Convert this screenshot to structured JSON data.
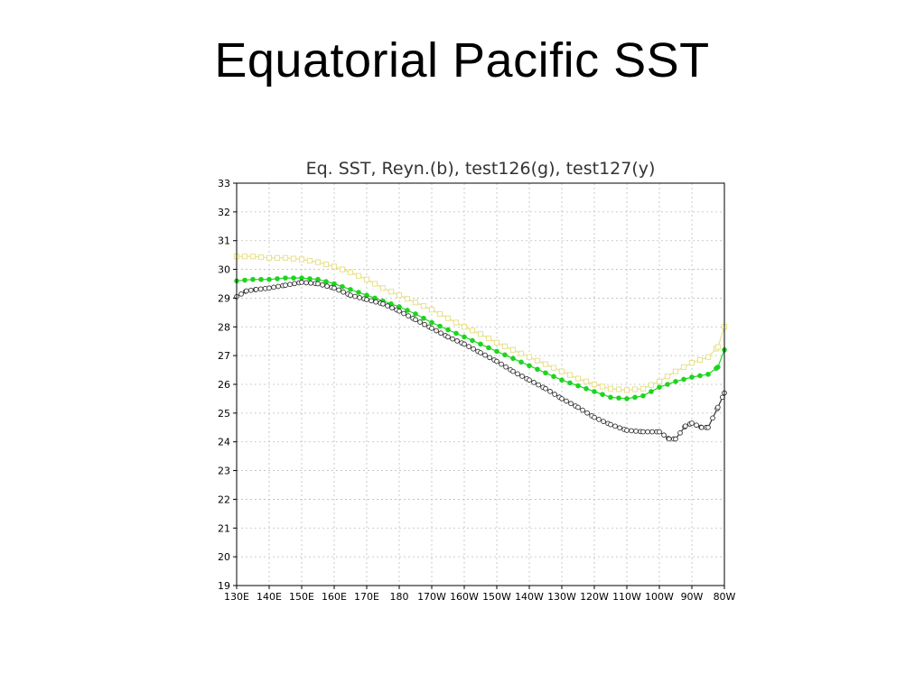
{
  "slide_title": "Equatorial Pacific SST",
  "chart_data": {
    "type": "line",
    "title": "Eq. SST, Reyn.(b), test126(g), test127(y)",
    "xlabel": "",
    "ylabel": "",
    "xlim": [
      130,
      280
    ],
    "ylim": [
      19,
      33
    ],
    "x_ticks": [
      130,
      140,
      150,
      160,
      170,
      180,
      190,
      200,
      210,
      220,
      230,
      240,
      250,
      260,
      270,
      280
    ],
    "x_tick_labels": [
      "130E",
      "140E",
      "150E",
      "160E",
      "170E",
      "180",
      "170W",
      "160W",
      "150W",
      "140W",
      "130W",
      "120W",
      "110W",
      "100W",
      "90W",
      "80W"
    ],
    "y_ticks": [
      19,
      20,
      21,
      22,
      23,
      24,
      25,
      26,
      27,
      28,
      29,
      30,
      31,
      32,
      33
    ],
    "grid": true,
    "series": [
      {
        "color": "#e8e08a",
        "marker": "square",
        "x": [
          130,
          135,
          140,
          145,
          150,
          155,
          160,
          165,
          170,
          175,
          180,
          185,
          190,
          195,
          200,
          205,
          210,
          215,
          220,
          225,
          230,
          235,
          240,
          245,
          250,
          255,
          260,
          265,
          270,
          275,
          278,
          280
        ],
        "y": [
          30.45,
          30.45,
          30.4,
          30.4,
          30.35,
          30.25,
          30.1,
          29.9,
          29.65,
          29.35,
          29.1,
          28.85,
          28.6,
          28.3,
          28.0,
          27.75,
          27.45,
          27.2,
          26.95,
          26.7,
          26.45,
          26.2,
          26.0,
          25.85,
          25.8,
          25.85,
          26.1,
          26.45,
          26.75,
          26.95,
          27.3,
          28.0
        ]
      },
      {
        "color": "#1ed41e",
        "marker": "dot",
        "x": [
          130,
          135,
          140,
          145,
          150,
          155,
          160,
          165,
          170,
          175,
          180,
          185,
          190,
          195,
          200,
          205,
          210,
          215,
          220,
          225,
          230,
          235,
          240,
          245,
          250,
          255,
          260,
          265,
          270,
          275,
          278,
          280
        ],
        "y": [
          29.6,
          29.65,
          29.65,
          29.7,
          29.7,
          29.65,
          29.5,
          29.3,
          29.1,
          28.9,
          28.7,
          28.45,
          28.15,
          27.9,
          27.65,
          27.4,
          27.15,
          26.9,
          26.65,
          26.4,
          26.15,
          25.95,
          25.75,
          25.55,
          25.5,
          25.6,
          25.9,
          26.1,
          26.25,
          26.35,
          26.6,
          27.2
        ]
      },
      {
        "color": "#333333",
        "marker": "circle",
        "x": [
          130,
          133,
          136,
          140,
          145,
          150,
          155,
          160,
          165,
          170,
          175,
          180,
          185,
          190,
          195,
          200,
          205,
          210,
          215,
          220,
          225,
          230,
          235,
          240,
          245,
          250,
          255,
          260,
          263,
          265,
          268,
          270,
          273,
          275,
          278,
          280
        ],
        "y": [
          29.05,
          29.25,
          29.3,
          29.35,
          29.45,
          29.55,
          29.5,
          29.35,
          29.1,
          28.95,
          28.8,
          28.55,
          28.25,
          27.95,
          27.65,
          27.4,
          27.1,
          26.8,
          26.45,
          26.15,
          25.85,
          25.5,
          25.2,
          24.85,
          24.6,
          24.4,
          24.35,
          24.35,
          24.1,
          24.1,
          24.55,
          24.65,
          24.5,
          24.5,
          25.2,
          25.7
        ]
      }
    ]
  }
}
